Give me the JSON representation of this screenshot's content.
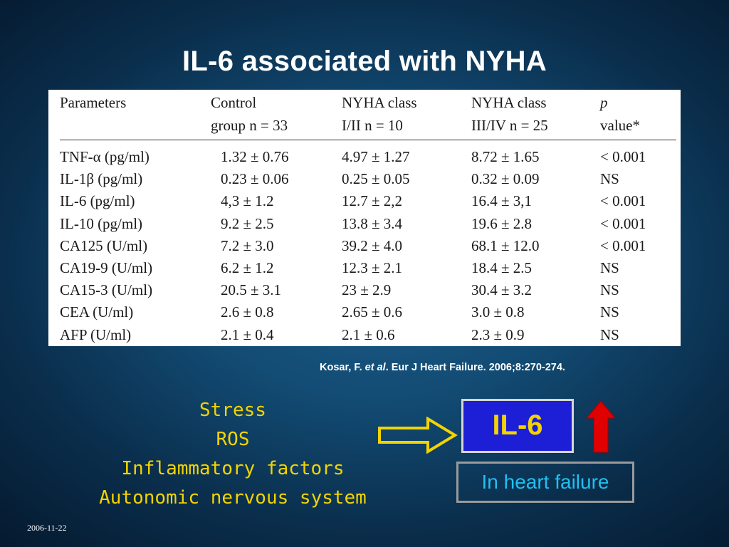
{
  "title": "IL-6 associated with NYHA",
  "table": {
    "headers": [
      [
        "Parameters",
        ""
      ],
      [
        "Control",
        "group n = 33"
      ],
      [
        "NYHA class",
        "I/II  n = 10"
      ],
      [
        "NYHA class",
        "III/IV  n = 25"
      ],
      [
        "p",
        "value*"
      ]
    ],
    "rows": [
      [
        "TNF-α (pg/ml)",
        "1.32 ± 0.76",
        "4.97 ± 1.27",
        "8.72 ± 1.65",
        "< 0.001"
      ],
      [
        "IL-1β (pg/ml)",
        "0.23 ± 0.06",
        "0.25 ± 0.05",
        "0.32 ± 0.09",
        "NS"
      ],
      [
        "IL-6 (pg/ml)",
        "4,3 ± 1.2",
        "12.7 ± 2,2",
        "16.4 ± 3,1",
        "< 0.001"
      ],
      [
        "IL-10 (pg/ml)",
        "9.2 ± 2.5",
        "13.8 ± 3.4",
        "19.6 ± 2.8",
        "< 0.001"
      ],
      [
        "CA125 (U/ml)",
        "7.2 ± 3.0",
        "39.2 ± 4.0",
        "68.1 ± 12.0",
        "< 0.001"
      ],
      [
        "CA19-9 (U/ml)",
        "6.2 ± 1.2",
        "12.3 ± 2.1",
        "18.4 ± 2.5",
        "NS"
      ],
      [
        "CA15-3 (U/ml)",
        "20.5 ± 3.1",
        "23 ± 2.9",
        "30.4 ± 3.2",
        "NS"
      ],
      [
        "CEA (U/ml)",
        "2.6 ± 0.8",
        "2.65 ± 0.6",
        "3.0 ± 0.8",
        "NS"
      ],
      [
        "AFP (U/ml)",
        "2.1 ± 0.4",
        "2.1 ± 0.6",
        "2.3 ± 0.9",
        "NS"
      ]
    ]
  },
  "citation": {
    "author": "Kosar, F.",
    "etal": "et al",
    "rest": ". Eur J Heart Failure. 2006;8:270-274."
  },
  "factors": [
    "Stress",
    "ROS",
    "Inflammatory factors",
    "Autonomic nervous system"
  ],
  "il6_label": "IL-6",
  "heart_failure_label": "In heart failure",
  "date": "2006-11-22",
  "icons": {
    "arrow_right": "hollow-right-arrow-icon",
    "arrow_up": "red-up-arrow-icon"
  },
  "colors": {
    "factors_text": "#f3d400",
    "il6_box": "#1d1fd6",
    "heart_failure_text": "#22bff0",
    "up_arrow": "#e00000"
  }
}
